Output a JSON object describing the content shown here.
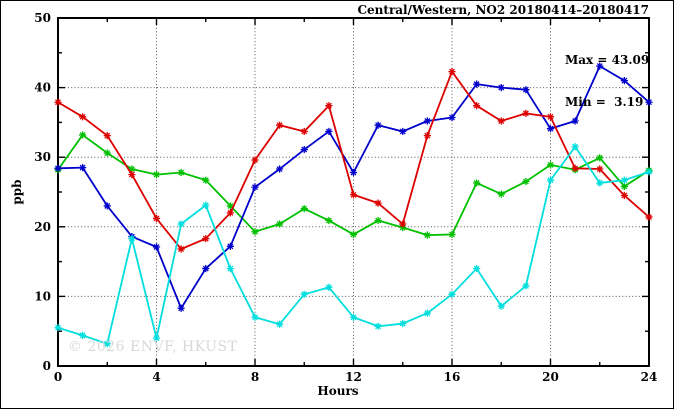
{
  "title": "Central/Western, NO2 20180414–20180417",
  "stats": {
    "max_line": "Max = 43.09",
    "min_line": "Min =  3.19"
  },
  "watermark": "© 2026 ENVF, HKUST",
  "chart_data": {
    "type": "line",
    "title": "Central/Western, NO2 20180414–20180417",
    "xlabel": "Hours",
    "ylabel": "ppb",
    "xlim": [
      0,
      24
    ],
    "ylim": [
      0,
      50
    ],
    "xticks": [
      0,
      4,
      8,
      12,
      16,
      20,
      24
    ],
    "yticks": [
      0,
      10,
      20,
      30,
      40,
      50
    ],
    "xtick_labels": [
      "0",
      "4",
      "8",
      "12",
      "16",
      "20",
      "24"
    ],
    "ytick_labels": [
      "0",
      "10",
      "20",
      "30",
      "40",
      "50"
    ],
    "grid": "dotted",
    "marker": "star",
    "legend_position": "none",
    "annotations": [
      "Max = 43.09",
      "Min =  3.19"
    ],
    "x": [
      0,
      1,
      2,
      3,
      4,
      5,
      6,
      7,
      8,
      9,
      10,
      11,
      12,
      13,
      14,
      15,
      16,
      17,
      18,
      19,
      20,
      21,
      22,
      23,
      24
    ],
    "series": [
      {
        "name": "green",
        "color": "#00c000",
        "values": [
          28.2,
          33.2,
          30.6,
          28.3,
          27.5,
          27.8,
          26.7,
          23.0,
          19.3,
          20.4,
          22.6,
          20.9,
          18.9,
          20.9,
          19.9,
          18.8,
          18.9,
          26.3,
          24.7,
          26.5,
          28.9,
          28.2,
          29.9,
          25.8,
          28.1
        ]
      },
      {
        "name": "blue",
        "color": "#0000cc",
        "values": [
          28.4,
          28.5,
          23.0,
          18.6,
          17.1,
          8.3,
          14.0,
          17.2,
          25.7,
          28.3,
          31.1,
          33.7,
          27.8,
          34.6,
          33.7,
          35.2,
          35.7,
          40.5,
          40.0,
          39.7,
          34.1,
          35.2,
          43.09,
          41.0,
          37.9
        ]
      },
      {
        "name": "red",
        "color": "#dd0000",
        "values": [
          37.9,
          35.8,
          33.1,
          27.5,
          21.2,
          16.8,
          18.3,
          22.0,
          29.6,
          34.6,
          33.7,
          37.4,
          24.6,
          23.4,
          20.4,
          33.1,
          42.3,
          37.4,
          35.2,
          36.3,
          35.8,
          28.4,
          28.3,
          24.5,
          21.4
        ]
      },
      {
        "name": "cyan",
        "color": "#00dede",
        "values": [
          5.5,
          4.4,
          3.19,
          18.3,
          4.0,
          20.4,
          23.1,
          14.0,
          7.0,
          6.0,
          10.3,
          11.3,
          7.0,
          5.7,
          6.1,
          7.6,
          10.3,
          14.0,
          8.6,
          11.5,
          26.7,
          31.5,
          26.3,
          26.7,
          27.9
        ]
      }
    ],
    "stats": {
      "max": 43.09,
      "min": 3.19
    }
  }
}
